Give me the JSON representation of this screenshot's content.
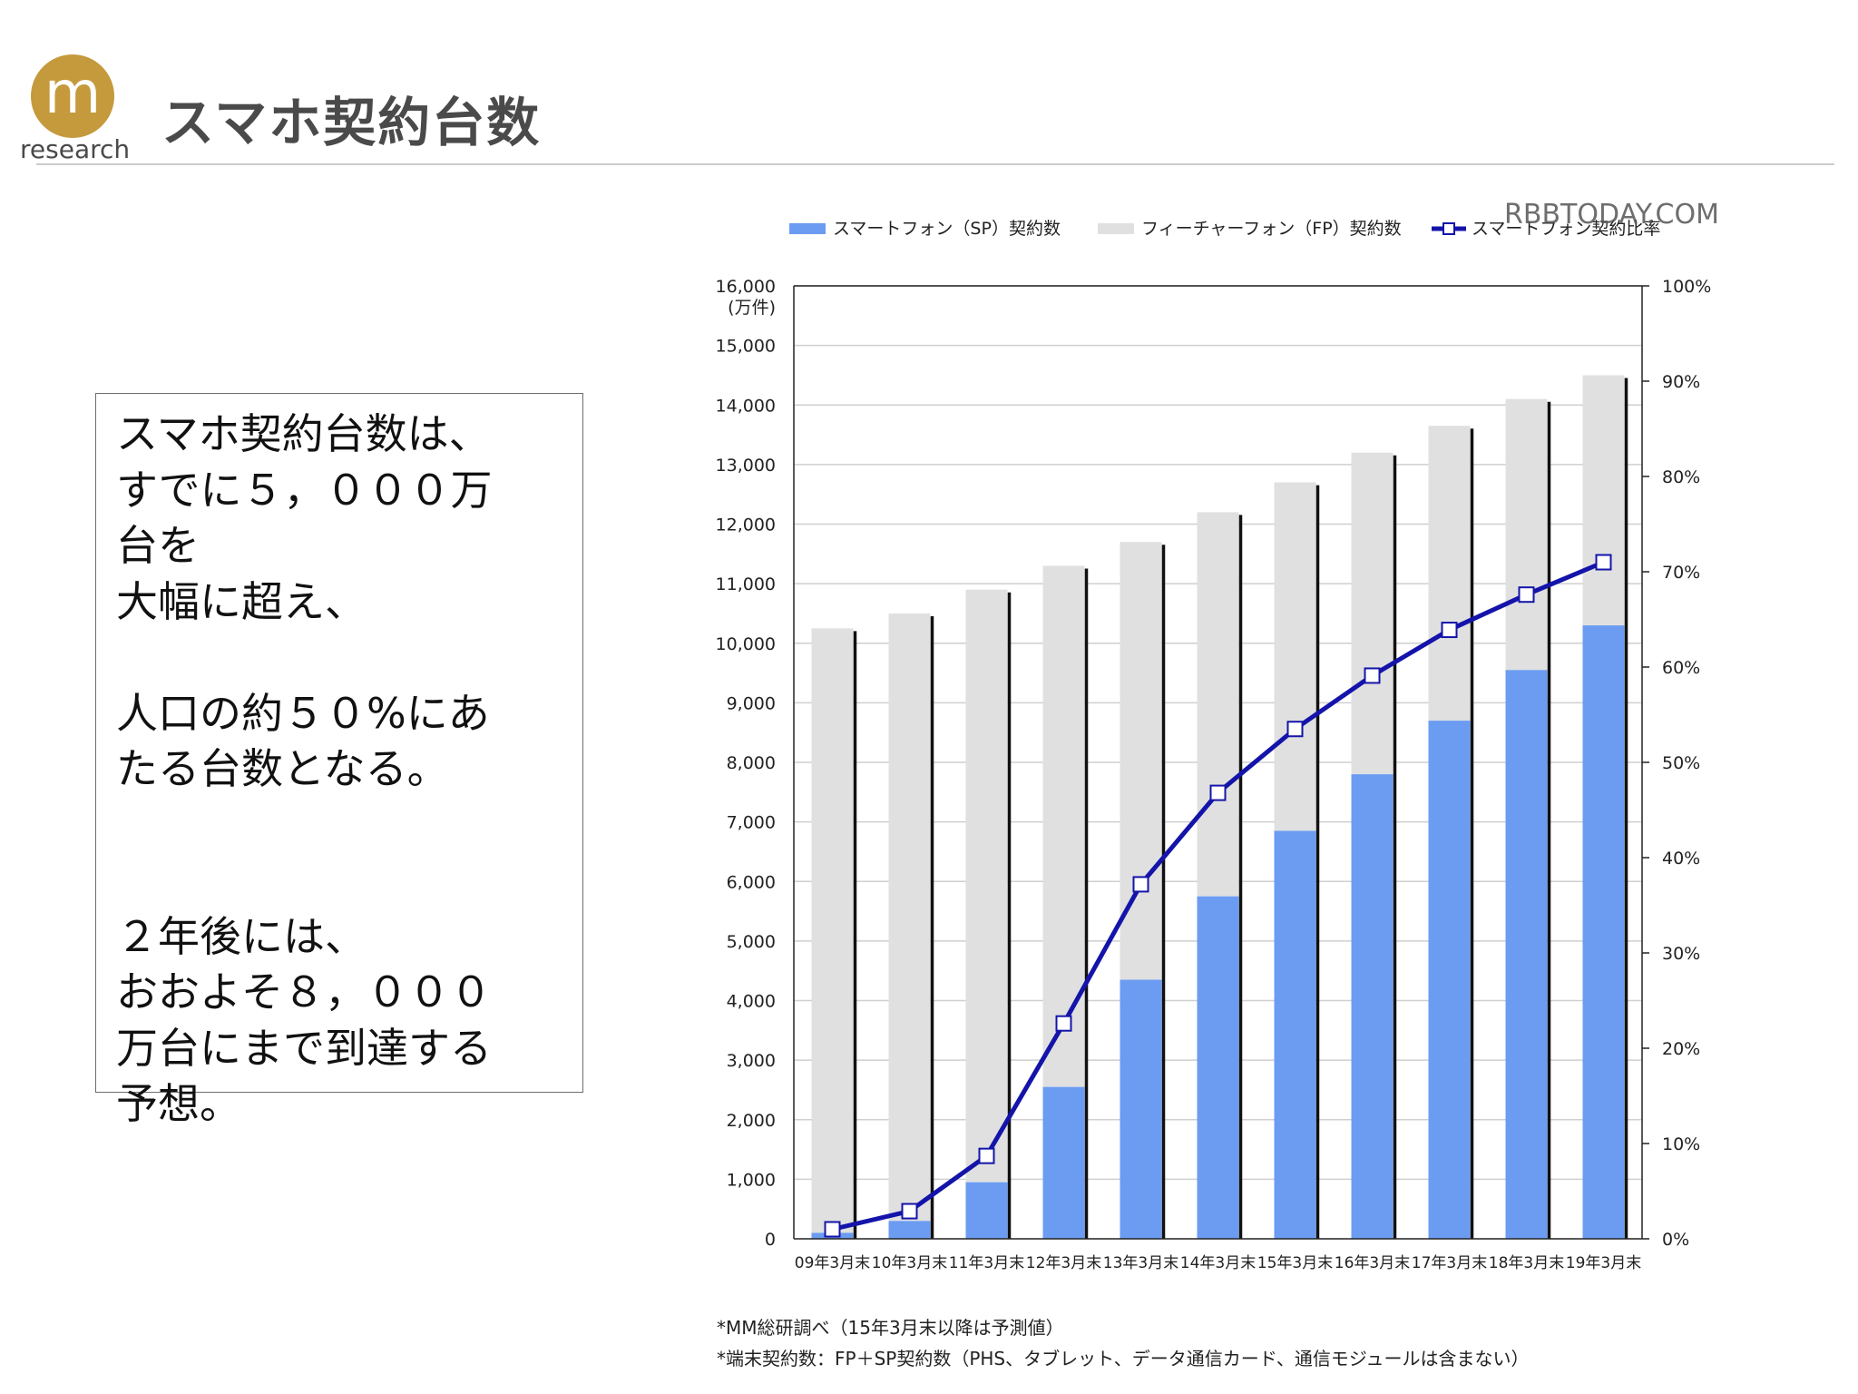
{
  "header": {
    "logo_letter": "m",
    "logo_word": "research",
    "title": "スマホ契約台数"
  },
  "summary": {
    "lines": [
      "スマホ契約台数は、",
      "すでに５，０００万",
      "台を",
      "大幅に超え、",
      "",
      "人口の約５０%にあ",
      "たる台数となる。",
      "",
      "",
      "２年後には、",
      "おおよそ８，０００",
      "万台にまで到達する",
      "予想。"
    ]
  },
  "colors": {
    "sp_bar": "#6b9cf2",
    "fp_bar": "#e0e0e0",
    "ratio_line": "#1414aa",
    "logo": "#c49a3c"
  },
  "chart_data": {
    "type": "bar",
    "stacked": true,
    "watermark": "RBBTODAY.COM",
    "categories": [
      "09年3月末",
      "10年3月末",
      "11年3月末",
      "12年3月末",
      "13年3月末",
      "14年3月末",
      "15年3月末",
      "16年3月末",
      "17年3月末",
      "18年3月末",
      "19年3月末"
    ],
    "series": [
      {
        "name": "スマートフォン（SP）契約数",
        "axis": "left",
        "values": [
          100,
          300,
          950,
          2550,
          4350,
          5750,
          6850,
          7800,
          8700,
          9550,
          10300
        ]
      },
      {
        "name": "フィーチャーフォン（FP）契約数",
        "axis": "left",
        "values": [
          10150,
          10200,
          9950,
          8750,
          7350,
          6450,
          5850,
          5400,
          4950,
          4550,
          4200
        ]
      },
      {
        "name": "スマートフォン契約比率",
        "type": "line",
        "axis": "right",
        "values": [
          1,
          2.9,
          8.7,
          22.6,
          37.2,
          46.8,
          53.5,
          59.1,
          63.9,
          67.6,
          71
        ]
      }
    ],
    "y_left": {
      "unit_label": "(万件)",
      "ylim": [
        0,
        16000
      ],
      "ticks": [
        "0",
        "1,000",
        "2,000",
        "3,000",
        "4,000",
        "5,000",
        "6,000",
        "7,000",
        "8,000",
        "9,000",
        "10,000",
        "11,000",
        "12,000",
        "13,000",
        "14,000",
        "15,000",
        "16,000"
      ]
    },
    "y_right": {
      "ylim": [
        0,
        100
      ],
      "ticks": [
        "0%",
        "10%",
        "20%",
        "30%",
        "40%",
        "50%",
        "60%",
        "70%",
        "80%",
        "90%",
        "100%"
      ]
    },
    "grid": true,
    "legend_position": "top",
    "notes": [
      "*MM総研調べ（15年3月末以降は予測値）",
      "*端末契約数：FP＋SP契約数（PHS、タブレット、データ通信カード、通信モジュールは含まない）"
    ]
  }
}
